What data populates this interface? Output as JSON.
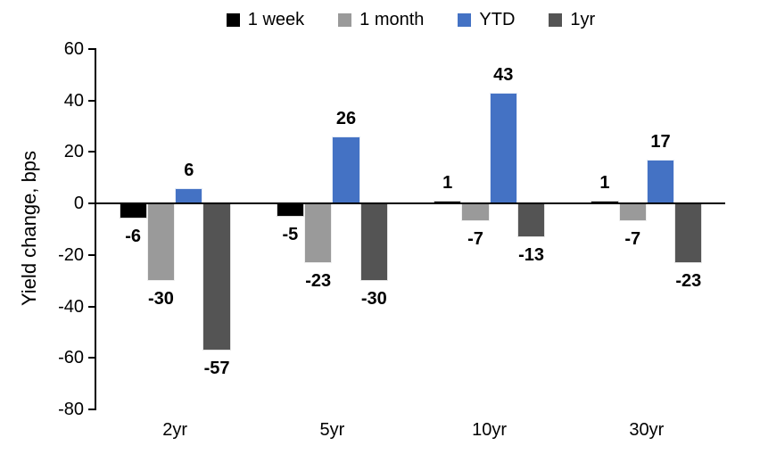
{
  "chart_data": {
    "type": "bar",
    "title": "",
    "xlabel": "",
    "ylabel": "Yield change, bps",
    "categories": [
      "2yr",
      "5yr",
      "10yr",
      "30yr"
    ],
    "series": [
      {
        "name": "1 week",
        "color": "#000000",
        "values": [
          -6,
          -5,
          1,
          1
        ]
      },
      {
        "name": "1 month",
        "color": "#9A9A9A",
        "values": [
          -30,
          -23,
          -7,
          -7
        ]
      },
      {
        "name": "YTD",
        "color": "#4472C4",
        "values": [
          6,
          26,
          43,
          17
        ]
      },
      {
        "name": "1yr",
        "color": "#545454",
        "values": [
          -57,
          -30,
          -13,
          -23
        ]
      }
    ],
    "ylim": [
      -80,
      60
    ],
    "yticks": [
      60,
      40,
      20,
      0,
      -20,
      -40,
      -60,
      -80
    ],
    "grid": false,
    "legend_position": "top",
    "data_labels": true
  }
}
